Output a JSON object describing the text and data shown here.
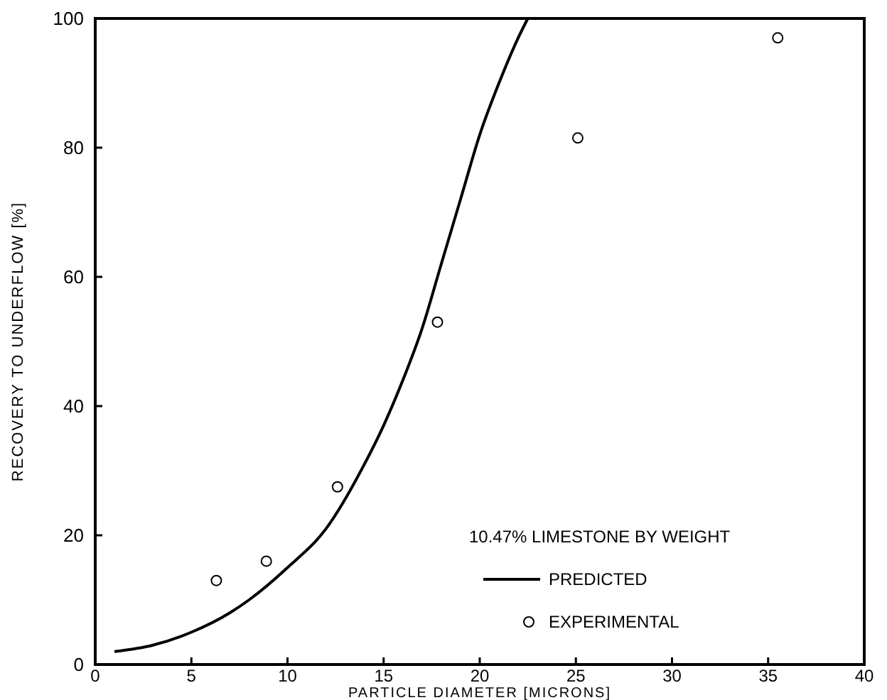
{
  "chart_data": {
    "type": "line",
    "xlabel": "PARTICLE DIAMETER [MICRONS]",
    "ylabel": "RECOVERY TO UNDERFLOW [%]",
    "legend_title": "10.47% LIMESTONE BY WEIGHT",
    "legend": "bottom right",
    "grid": false,
    "xlim": [
      0,
      40
    ],
    "xticks": [
      0,
      5,
      10,
      15,
      20,
      25,
      30,
      35,
      40
    ],
    "ylim": [
      0,
      100
    ],
    "yticks": [
      0,
      20,
      40,
      60,
      80,
      100
    ],
    "series": [
      {
        "name": "PREDICTED",
        "color": "#000000",
        "marker": "none",
        "line_style": "solid",
        "x": [
          1,
          3,
          5,
          7,
          8,
          10,
          12,
          14,
          15,
          16,
          17,
          18,
          19,
          20,
          21,
          22,
          22.5
        ],
        "values": [
          2,
          3,
          5,
          8,
          10,
          15,
          21,
          31,
          37,
          44,
          52,
          62,
          72,
          82,
          90,
          97,
          100
        ]
      },
      {
        "name": "EXPERIMENTAL",
        "type": "scatter",
        "color": "#000000",
        "marker": "circle",
        "x": [
          6.3,
          8.9,
          12.6,
          17.8,
          25.1,
          35.5
        ],
        "values": [
          13,
          16,
          27.5,
          53,
          81.5,
          97
        ]
      }
    ]
  }
}
